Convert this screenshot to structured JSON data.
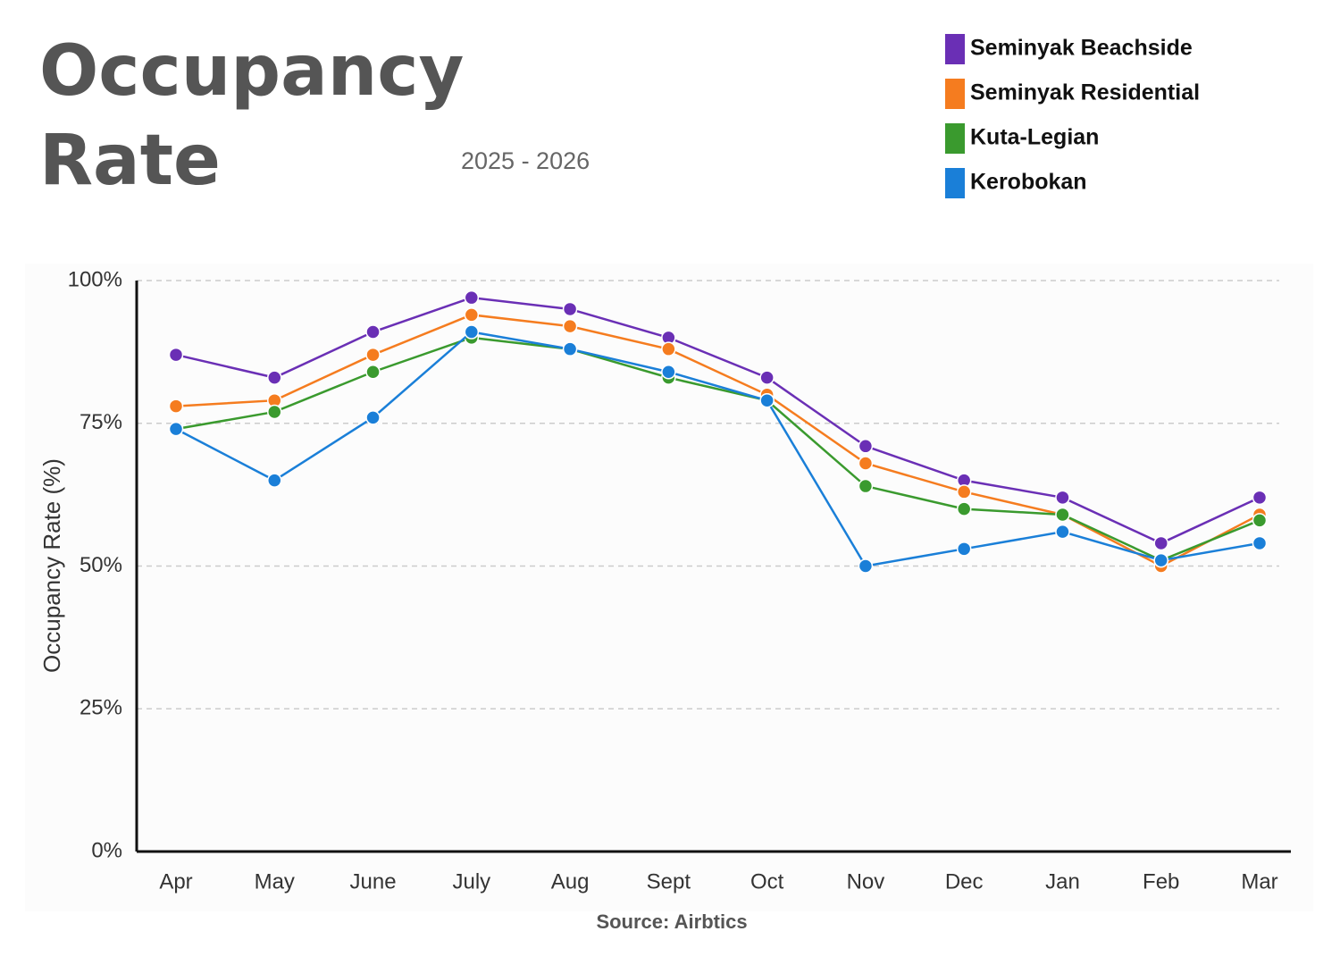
{
  "chart_data": {
    "type": "line",
    "title": "Occupancy Rate",
    "subtitle": "2025 - 2026",
    "y_label": "Occupancy Rate (%)",
    "source": "Source: Airbtics",
    "categories": [
      "Apr",
      "May",
      "June",
      "July",
      "Aug",
      "Sept",
      "Oct",
      "Nov",
      "Dec",
      "Jan",
      "Feb",
      "Mar"
    ],
    "series": [
      {
        "name": "Seminyak Beachside",
        "color": "#6a2fb5",
        "values": [
          87,
          83,
          91,
          97,
          95,
          90,
          83,
          71,
          65,
          62,
          54,
          62
        ]
      },
      {
        "name": "Seminyak Residential",
        "color": "#f57c1f",
        "values": [
          78,
          79,
          87,
          94,
          92,
          88,
          80,
          68,
          63,
          59,
          50,
          59
        ]
      },
      {
        "name": "Kuta-Legian",
        "color": "#3a9a2e",
        "values": [
          74,
          77,
          84,
          90,
          88,
          83,
          79,
          64,
          60,
          59,
          51,
          58
        ]
      },
      {
        "name": "Kerobokan",
        "color": "#1a7fd8",
        "values": [
          74,
          65,
          76,
          91,
          88,
          84,
          79,
          50,
          53,
          56,
          51,
          54
        ]
      }
    ],
    "ylim": [
      0,
      100
    ],
    "yticks": [
      {
        "value": 0,
        "label": "0%"
      },
      {
        "value": 25,
        "label": "25%"
      },
      {
        "value": 50,
        "label": "50%"
      },
      {
        "value": 75,
        "label": "75%"
      },
      {
        "value": 100,
        "label": "100%"
      }
    ],
    "grid": true,
    "legend": "top-right"
  }
}
